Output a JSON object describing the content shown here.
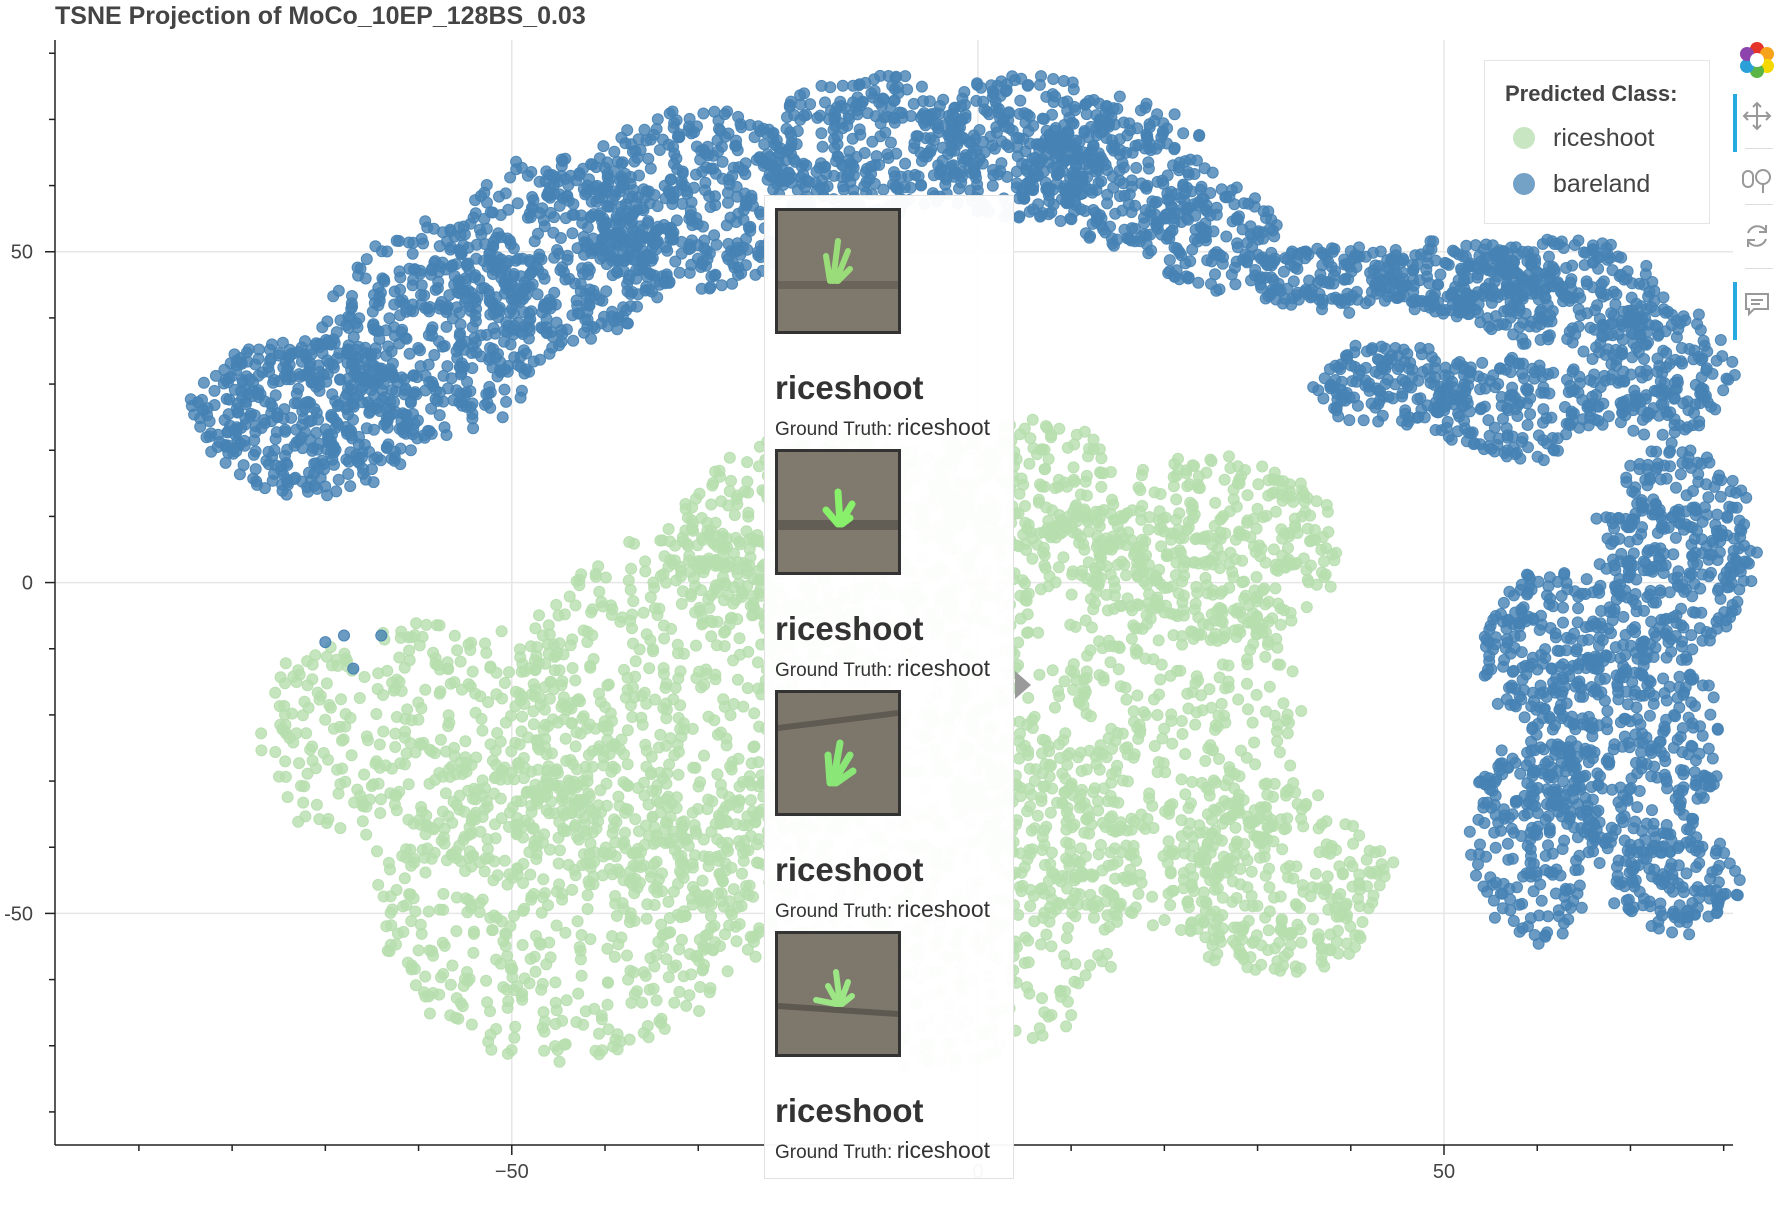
{
  "chart_data": {
    "type": "scatter",
    "title": "TSNE Projection of MoCo_10EP_128BS_0.03",
    "xlabel": "",
    "ylabel": "",
    "xlim": [
      -99,
      81
    ],
    "ylim": [
      -85,
      82
    ],
    "x_ticks": [
      -50,
      0,
      50
    ],
    "x_tick_labels": [
      "−50",
      "0",
      "50"
    ],
    "y_ticks": [
      50,
      0,
      -50
    ],
    "y_tick_labels": [
      "50",
      "0",
      "-50"
    ],
    "grid": true,
    "legend": {
      "title": "Predicted Class:",
      "placement": "top-right",
      "items": [
        {
          "label": "riceshoot",
          "color": "#b7deae"
        },
        {
          "label": "bareland",
          "color": "#4682b4"
        }
      ]
    },
    "series": [
      {
        "name": "riceshoot",
        "color": "#b7deae",
        "clusters": [
          {
            "cx": -58,
            "cy": -24,
            "rx": 20,
            "ry": 18,
            "n": 380
          },
          {
            "cx": -45,
            "cy": -50,
            "rx": 20,
            "ry": 22,
            "n": 520
          },
          {
            "cx": -30,
            "cy": -20,
            "rx": 20,
            "ry": 28,
            "n": 650
          },
          {
            "cx": -15,
            "cy": 5,
            "rx": 18,
            "ry": 18,
            "n": 520
          },
          {
            "cx": -5,
            "cy": -45,
            "rx": 22,
            "ry": 28,
            "n": 620
          },
          {
            "cx": 15,
            "cy": -20,
            "rx": 20,
            "ry": 32,
            "n": 650
          },
          {
            "cx": 25,
            "cy": 5,
            "rx": 14,
            "ry": 14,
            "n": 330
          },
          {
            "cx": 32,
            "cy": -45,
            "rx": 12,
            "ry": 14,
            "n": 300
          },
          {
            "cx": 5,
            "cy": 15,
            "rx": 10,
            "ry": 10,
            "n": 180
          }
        ]
      },
      {
        "name": "bareland",
        "color": "#4682b4",
        "clusters": [
          {
            "cx": -72,
            "cy": 25,
            "rx": 12,
            "ry": 12,
            "n": 420
          },
          {
            "cx": -58,
            "cy": 38,
            "rx": 12,
            "ry": 16,
            "n": 380
          },
          {
            "cx": -45,
            "cy": 50,
            "rx": 12,
            "ry": 14,
            "n": 380
          },
          {
            "cx": -30,
            "cy": 58,
            "rx": 12,
            "ry": 14,
            "n": 360
          },
          {
            "cx": -12,
            "cy": 66,
            "rx": 12,
            "ry": 11,
            "n": 320
          },
          {
            "cx": 5,
            "cy": 66,
            "rx": 10,
            "ry": 11,
            "n": 260
          },
          {
            "cx": 15,
            "cy": 62,
            "rx": 10,
            "ry": 11,
            "n": 240
          },
          {
            "cx": 25,
            "cy": 52,
            "rx": 8,
            "ry": 8,
            "n": 150
          },
          {
            "cx": 38,
            "cy": 46,
            "rx": 9,
            "ry": 5,
            "n": 140
          },
          {
            "cx": 52,
            "cy": 46,
            "rx": 10,
            "ry": 6,
            "n": 180
          },
          {
            "cx": 62,
            "cy": 44,
            "rx": 12,
            "ry": 8,
            "n": 220
          },
          {
            "cx": 45,
            "cy": 30,
            "rx": 9,
            "ry": 6,
            "n": 160
          },
          {
            "cx": 58,
            "cy": 26,
            "rx": 9,
            "ry": 8,
            "n": 160
          },
          {
            "cx": 73,
            "cy": 32,
            "rx": 8,
            "ry": 10,
            "n": 200
          },
          {
            "cx": 75,
            "cy": 5,
            "rx": 8,
            "ry": 16,
            "n": 320
          },
          {
            "cx": 70,
            "cy": -25,
            "rx": 10,
            "ry": 16,
            "n": 320
          },
          {
            "cx": 62,
            "cy": -10,
            "rx": 8,
            "ry": 12,
            "n": 200
          },
          {
            "cx": 60,
            "cy": -38,
            "rx": 7,
            "ry": 16,
            "n": 220
          },
          {
            "cx": 75,
            "cy": -45,
            "rx": 7,
            "ry": 8,
            "n": 140
          }
        ],
        "outliers": [
          [
            -68,
            -8
          ],
          [
            -67,
            -13
          ],
          [
            -64,
            -8
          ],
          [
            -70,
            -9
          ]
        ]
      }
    ]
  },
  "tooltip": {
    "entries": [
      {
        "predicted": "riceshoot",
        "gt_label": "Ground Truth:",
        "gt_value": "riceshoot"
      },
      {
        "predicted": "riceshoot",
        "gt_label": "Ground Truth:",
        "gt_value": "riceshoot"
      },
      {
        "predicted": "riceshoot",
        "gt_label": "Ground Truth:",
        "gt_value": "riceshoot"
      },
      {
        "predicted": "riceshoot",
        "gt_label": "Ground Truth:",
        "gt_value": "riceshoot"
      }
    ]
  },
  "toolbar": {
    "tools": [
      {
        "icon": "bokeh-logo-icon"
      },
      {
        "icon": "pan-icon"
      },
      {
        "icon": "box-zoom-icon"
      },
      {
        "icon": "reset-icon"
      },
      {
        "icon": "hover-icon"
      }
    ]
  }
}
